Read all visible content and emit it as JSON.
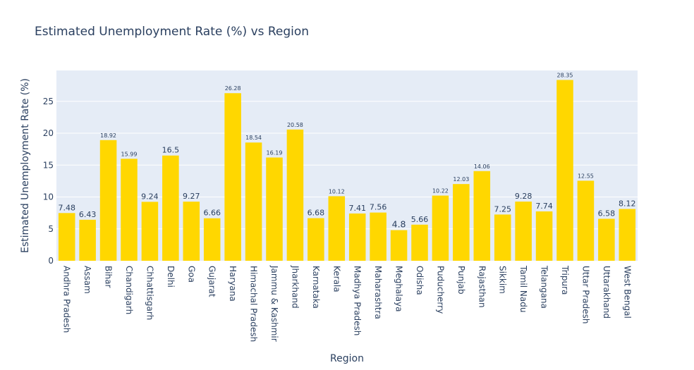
{
  "chart_data": {
    "type": "bar",
    "title": "Estimated Unemployment Rate (%) vs Region",
    "xlabel": "Region",
    "ylabel": "Estimated Unemployment Rate (%)",
    "ylim": [
      0,
      29.84
    ],
    "yticks": [
      0,
      5,
      10,
      15,
      20,
      25
    ],
    "grid": true,
    "colors": {
      "bar": "#FFD700",
      "plot_bg": "#E5ECF6",
      "grid": "#ffffff",
      "text": "#2a3f5f"
    },
    "categories": [
      "Andhra Pradesh",
      "Assam",
      "Bihar",
      "Chandigarh",
      "Chhattisgarh",
      "Delhi",
      "Goa",
      "Gujarat",
      "Haryana",
      "Himachal Pradesh",
      "Jammu & Kashmir",
      "Jharkhand",
      "Karnataka",
      "Kerala",
      "Madhya Pradesh",
      "Maharashtra",
      "Meghalaya",
      "Odisha",
      "Puducherry",
      "Punjab",
      "Rajasthan",
      "Sikkim",
      "Tamil Nadu",
      "Telangana",
      "Tripura",
      "Uttar Pradesh",
      "Uttarakhand",
      "West Bengal"
    ],
    "values": [
      7.48,
      6.43,
      18.92,
      15.99,
      9.24,
      16.5,
      9.27,
      6.66,
      26.28,
      18.54,
      16.19,
      20.58,
      6.68,
      10.12,
      7.41,
      7.56,
      4.8,
      5.66,
      10.22,
      12.03,
      14.06,
      7.25,
      9.28,
      7.74,
      28.35,
      12.55,
      6.58,
      8.12
    ],
    "labels": [
      "7.48",
      "6.43",
      "18.92",
      "15.99",
      "9.24",
      "16.5",
      "9.27",
      "6.66",
      "26.28",
      "18.54",
      "16.19",
      "20.58",
      "6.68",
      "10.12",
      "7.41",
      "7.56",
      "4.8",
      "5.66",
      "10.22",
      "12.03",
      "14.06",
      "7.25",
      "9.28",
      "7.74",
      "28.35",
      "12.55",
      "6.58",
      "8.12"
    ]
  }
}
